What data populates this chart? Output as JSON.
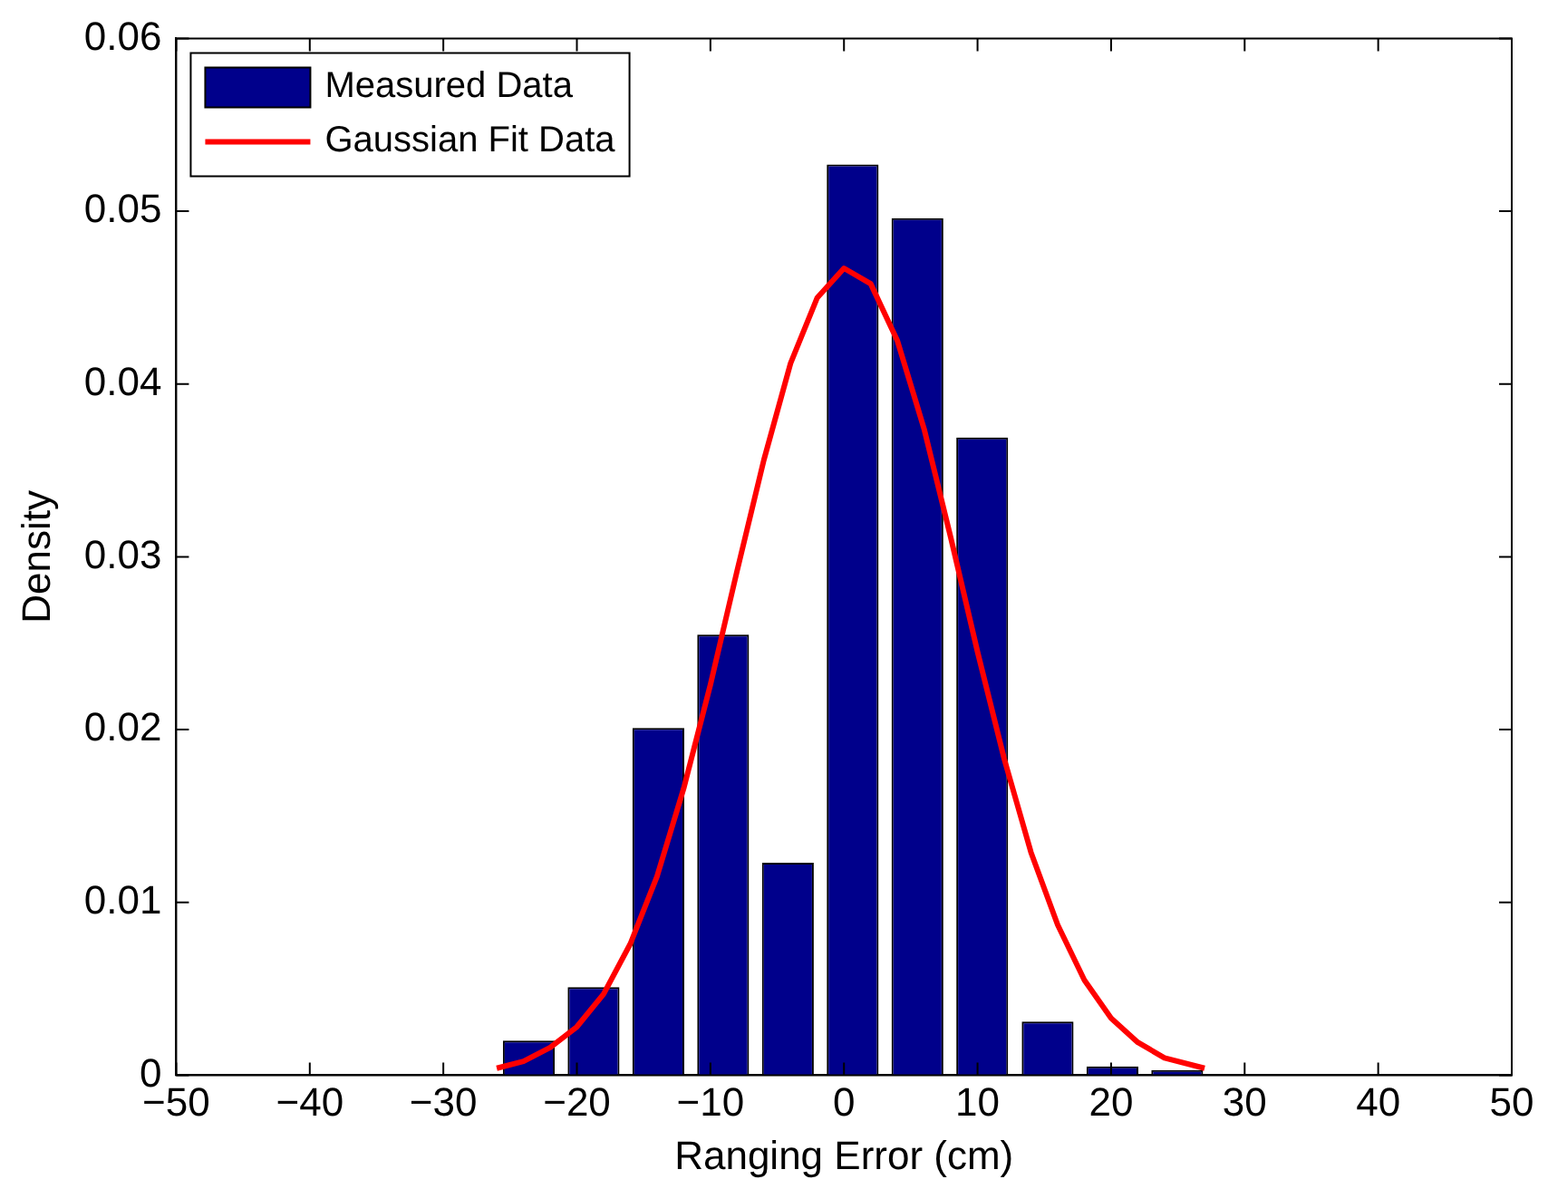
{
  "chart_data": {
    "type": "histogram",
    "xlabel": "Ranging Error (cm)",
    "ylabel": "Density",
    "bins": [
      -26,
      -21.2,
      -16.3,
      -11.5,
      -6.6,
      -1.8,
      3.1,
      7.9,
      12.8,
      17.7,
      22.5,
      27.4
    ],
    "series": [
      {
        "name": "Measured Data",
        "color": "#00008b",
        "values": [
          0.002,
          0.0051,
          0.0201,
          0.0255,
          0.0123,
          0.0527,
          0.0496,
          0.0369,
          0.0031,
          0.0005,
          0.0003
        ]
      },
      {
        "name": "Gaussian Fit Data",
        "type": "line",
        "color": "#ff0000",
        "x": [
          -26,
          -24,
          -22,
          -20,
          -18,
          -16,
          -14,
          -12,
          -10,
          -8,
          -6,
          -4,
          -2,
          0,
          2,
          4,
          6,
          8,
          10,
          12,
          14,
          16,
          18,
          20,
          22,
          24,
          27
        ],
        "values": [
          0.0004,
          0.0008,
          0.0016,
          0.0028,
          0.0047,
          0.0076,
          0.0115,
          0.0166,
          0.0226,
          0.0292,
          0.0356,
          0.0412,
          0.045,
          0.0467,
          0.0458,
          0.0425,
          0.0374,
          0.0311,
          0.0245,
          0.0183,
          0.0129,
          0.0087,
          0.0055,
          0.0033,
          0.0019,
          0.001,
          0.0004
        ]
      }
    ],
    "xlim": [
      -50,
      50
    ],
    "xticks": [
      -50,
      -40,
      -30,
      -20,
      -10,
      0,
      10,
      20,
      30,
      40,
      50
    ],
    "ylim": [
      0,
      0.06
    ],
    "yticks": [
      0,
      0.01,
      0.02,
      0.03,
      0.04,
      0.05,
      0.06
    ],
    "grid": false,
    "legend": "top left"
  }
}
